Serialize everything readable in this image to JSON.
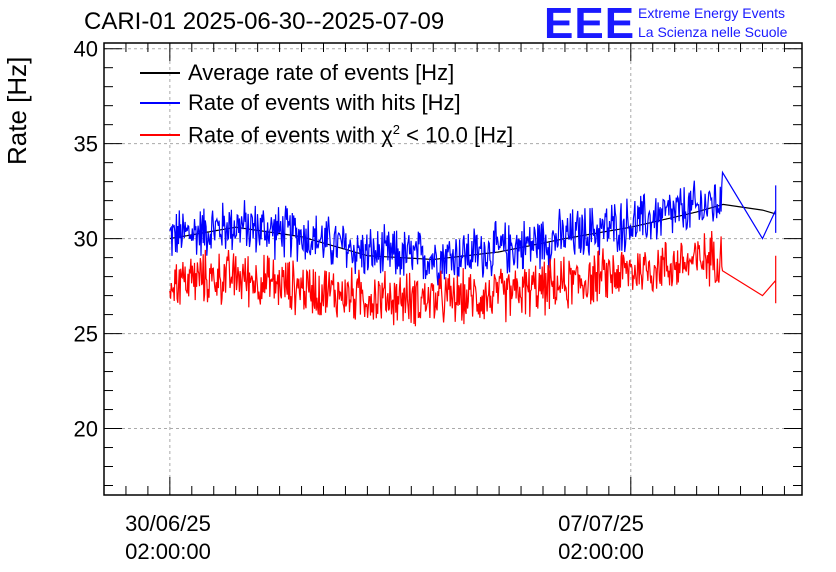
{
  "chart_data": {
    "type": "line",
    "title": "CARI-01 2025-06-30--2025-07-09",
    "ylabel": "Rate [Hz]",
    "xlabel": "",
    "ylim": [
      16.5,
      40.3
    ],
    "yticks": [
      20,
      25,
      30,
      35,
      40
    ],
    "x_ticks": [
      {
        "date": "30/06/25",
        "time": "02:00:00",
        "day": 0
      },
      {
        "date": "07/07/25",
        "time": "02:00:00",
        "day": 7
      }
    ],
    "xlim_days": [
      -1.0,
      9.6
    ],
    "grid": true,
    "legend_position": "top-left",
    "series": [
      {
        "name": "Average rate of events [Hz]",
        "color": "#000000",
        "x_days": [
          0.0,
          1.0,
          2.0,
          3.0,
          4.0,
          5.0,
          6.0,
          7.0,
          8.0,
          8.4,
          9.0,
          9.2
        ],
        "values": [
          30.0,
          30.6,
          30.1,
          29.1,
          28.9,
          29.3,
          30.0,
          30.6,
          31.4,
          31.8,
          31.5,
          31.3
        ]
      },
      {
        "name": "Rate of events with hits [Hz]",
        "color": "#0000ff",
        "x_days": [
          0.0,
          1.0,
          2.0,
          3.0,
          4.0,
          5.0,
          6.0,
          7.0,
          8.0,
          8.4,
          9.0,
          9.2
        ],
        "values": [
          30.1,
          30.7,
          30.2,
          29.2,
          29.0,
          29.4,
          30.1,
          30.8,
          31.6,
          32.0,
          30.0,
          31.5
        ],
        "noise": 1.4
      },
      {
        "name": "Rate of events with χ² < 10.0 [Hz]",
        "color": "#ff0000",
        "x_days": [
          0.0,
          1.0,
          2.0,
          3.0,
          4.0,
          5.0,
          6.0,
          7.0,
          8.0,
          8.4,
          9.0,
          9.2
        ],
        "values": [
          27.8,
          28.0,
          27.4,
          26.9,
          26.8,
          27.0,
          27.6,
          28.3,
          28.8,
          29.2,
          27.0,
          27.8
        ],
        "noise": 1.4
      }
    ]
  },
  "legend": [
    {
      "label": "Average rate of events [Hz]",
      "color": "#000000"
    },
    {
      "label": "Rate of events with hits [Hz]",
      "color": "#0000ff"
    },
    {
      "label_prefix": "Rate of events with ",
      "label_symbol": "χ",
      "label_sup": "2",
      "label_suffix": " < 10.0 [Hz]",
      "color": "#ff0000"
    }
  ],
  "logo": {
    "mark": "EEE",
    "line1": "Extreme Energy Events",
    "line2": "La Scienza nelle Scuole"
  }
}
